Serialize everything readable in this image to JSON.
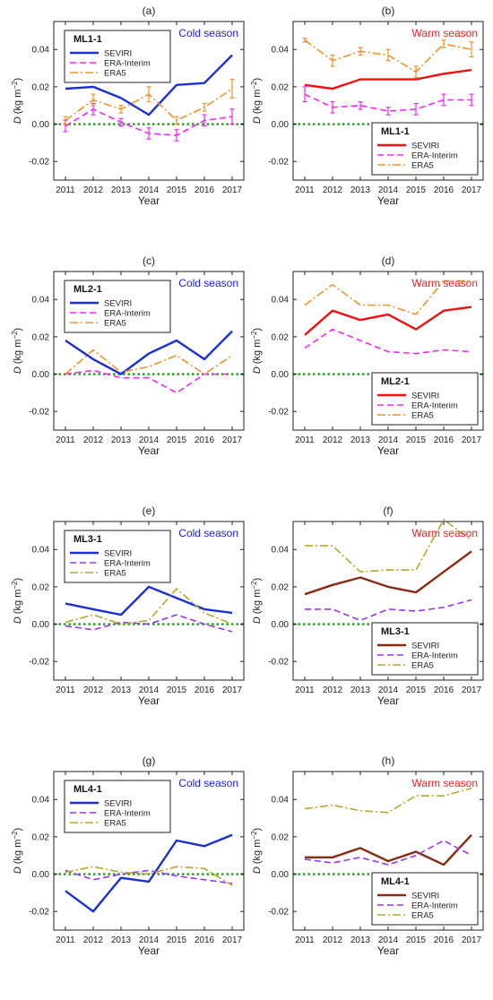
{
  "figure": {
    "xlabel": "Year",
    "ylabel_main": "D",
    "ylabel_unit": "(kg m",
    "ylabel_exp": "−2",
    "ylabel_close": ")"
  },
  "colors": {
    "cold_title": "#1a1aff",
    "warm_title": "#ff1a1a",
    "zero_line": "#1aa01a",
    "seviri_blue": "#1a2fd6",
    "seviri_red": "#ee1111",
    "seviri_brown": "#8b2a12",
    "erai_magenta": "#ff22ff",
    "erai_purple": "#9933ff",
    "era5_orange": "#f0932a",
    "era5_olive": "#b5a82a"
  },
  "chart_data": [
    {
      "panel": "(a)",
      "region": "ML1-1",
      "season": "Cold season",
      "type": "line",
      "legend_position": "top-left",
      "grid": false,
      "x": [
        2011,
        2012,
        2013,
        2014,
        2015,
        2016,
        2017
      ],
      "ylim": [
        -0.03,
        0.055
      ],
      "yticks": [
        "0.04",
        "0.02",
        "0.00",
        "-0.02"
      ],
      "ytick_values": [
        0.04,
        0.02,
        0.0,
        -0.02
      ],
      "series": [
        {
          "name": "SEVIRI",
          "values": [
            0.019,
            0.02,
            0.014,
            0.005,
            0.021,
            0.022,
            0.037
          ],
          "color": "#1a2fd6",
          "dash": "solid"
        },
        {
          "name": "ERA-Interim",
          "values": [
            -0.001,
            0.008,
            0.001,
            -0.005,
            -0.006,
            0.002,
            0.004
          ],
          "color": "#ff22ff",
          "dash": "dashed",
          "error": [
            0.003,
            0.003,
            0.002,
            0.003,
            0.003,
            0.003,
            0.004
          ]
        },
        {
          "name": "ERA5",
          "values": [
            0.002,
            0.013,
            0.008,
            0.016,
            0.002,
            0.009,
            0.019
          ],
          "color": "#f0932a",
          "dash": "dashdot",
          "error": [
            0.002,
            0.003,
            0.002,
            0.004,
            0.002,
            0.002,
            0.005
          ]
        }
      ]
    },
    {
      "panel": "(b)",
      "region": "ML1-1",
      "season": "Warm season",
      "type": "line",
      "legend_position": "bottom-right",
      "grid": false,
      "x": [
        2011,
        2012,
        2013,
        2014,
        2015,
        2016,
        2017
      ],
      "ylim": [
        -0.03,
        0.055
      ],
      "yticks": [
        "0.04",
        "0.02",
        "0.00",
        "-0.02"
      ],
      "ytick_values": [
        0.04,
        0.02,
        0.0,
        -0.02
      ],
      "series": [
        {
          "name": "SEVIRI",
          "values": [
            0.021,
            0.019,
            0.024,
            0.024,
            0.024,
            0.027,
            0.029
          ],
          "color": "#ee1111",
          "dash": "solid"
        },
        {
          "name": "ERA-Interim",
          "values": [
            0.016,
            0.009,
            0.01,
            0.007,
            0.008,
            0.013,
            0.013
          ],
          "color": "#ff22ff",
          "dash": "dashed",
          "error": [
            0.004,
            0.003,
            0.002,
            0.002,
            0.003,
            0.003,
            0.003
          ]
        },
        {
          "name": "ERA5",
          "values": [
            0.045,
            0.034,
            0.039,
            0.037,
            0.028,
            0.043,
            0.04
          ],
          "color": "#f0932a",
          "dash": "dashdot",
          "error": [
            0.001,
            0.003,
            0.002,
            0.003,
            0.003,
            0.002,
            0.004
          ]
        }
      ]
    },
    {
      "panel": "(c)",
      "region": "ML2-1",
      "season": "Cold season",
      "type": "line",
      "legend_position": "top-left",
      "grid": false,
      "x": [
        2011,
        2012,
        2013,
        2014,
        2015,
        2016,
        2017
      ],
      "ylim": [
        -0.03,
        0.055
      ],
      "yticks": [
        "0.04",
        "0.02",
        "0.00",
        "-0.02"
      ],
      "ytick_values": [
        0.04,
        0.02,
        0.0,
        -0.02
      ],
      "series": [
        {
          "name": "SEVIRI",
          "values": [
            0.018,
            0.008,
            0.0,
            0.011,
            0.018,
            0.008,
            0.023
          ],
          "color": "#1a2fd6",
          "dash": "solid"
        },
        {
          "name": "ERA-Interim",
          "values": [
            0.0,
            0.002,
            -0.002,
            -0.002,
            -0.01,
            0.0,
            0.0
          ],
          "color": "#ff22ff",
          "dash": "dashed"
        },
        {
          "name": "ERA5",
          "values": [
            0.0,
            0.013,
            0.001,
            0.004,
            0.01,
            0.0,
            0.01
          ],
          "color": "#f0932a",
          "dash": "dashdot"
        }
      ]
    },
    {
      "panel": "(d)",
      "region": "ML2-1",
      "season": "Warm season",
      "type": "line",
      "legend_position": "bottom-right",
      "grid": false,
      "x": [
        2011,
        2012,
        2013,
        2014,
        2015,
        2016,
        2017
      ],
      "ylim": [
        -0.03,
        0.055
      ],
      "yticks": [
        "0.04",
        "0.02",
        "0.00",
        "-0.02"
      ],
      "ytick_values": [
        0.04,
        0.02,
        0.0,
        -0.02
      ],
      "series": [
        {
          "name": "SEVIRI",
          "values": [
            0.021,
            0.034,
            0.029,
            0.032,
            0.024,
            0.034,
            0.036
          ],
          "color": "#ee1111",
          "dash": "solid"
        },
        {
          "name": "ERA-Interim",
          "values": [
            0.014,
            0.024,
            0.018,
            0.012,
            0.011,
            0.013,
            0.012
          ],
          "color": "#ff22ff",
          "dash": "dashed"
        },
        {
          "name": "ERA5",
          "values": [
            0.037,
            0.048,
            0.037,
            0.037,
            0.032,
            0.05,
            0.05
          ],
          "color": "#f0932a",
          "dash": "dashdot"
        }
      ]
    },
    {
      "panel": "(e)",
      "region": "ML3-1",
      "season": "Cold season",
      "type": "line",
      "legend_position": "top-left",
      "grid": false,
      "x": [
        2011,
        2012,
        2013,
        2014,
        2015,
        2016,
        2017
      ],
      "ylim": [
        -0.03,
        0.055
      ],
      "yticks": [
        "0.04",
        "0.02",
        "0.00",
        "-0.02"
      ],
      "ytick_values": [
        0.04,
        0.02,
        0.0,
        -0.02
      ],
      "series": [
        {
          "name": "SEVIRI",
          "values": [
            0.011,
            0.008,
            0.005,
            0.02,
            0.014,
            0.008,
            0.006
          ],
          "color": "#1a2fd6",
          "dash": "solid"
        },
        {
          "name": "ERA-Interim",
          "values": [
            -0.001,
            -0.003,
            0.001,
            0.0,
            0.005,
            0.0,
            -0.004
          ],
          "color": "#9933ff",
          "dash": "dashed"
        },
        {
          "name": "ERA5",
          "values": [
            0.001,
            0.005,
            0.0,
            0.002,
            0.019,
            0.006,
            0.0
          ],
          "color": "#b5a82a",
          "dash": "dashdot"
        }
      ]
    },
    {
      "panel": "(f)",
      "region": "ML3-1",
      "season": "Warm season",
      "type": "line",
      "legend_position": "bottom-right",
      "grid": false,
      "x": [
        2011,
        2012,
        2013,
        2014,
        2015,
        2016,
        2017
      ],
      "ylim": [
        -0.03,
        0.055
      ],
      "yticks": [
        "0.04",
        "0.02",
        "0.00",
        "-0.02"
      ],
      "ytick_values": [
        0.04,
        0.02,
        0.0,
        -0.02
      ],
      "series": [
        {
          "name": "SEVIRI",
          "values": [
            0.016,
            0.021,
            0.025,
            0.02,
            0.017,
            0.028,
            0.039
          ],
          "color": "#8b2a12",
          "dash": "solid"
        },
        {
          "name": "ERA-Interim",
          "values": [
            0.008,
            0.008,
            0.002,
            0.008,
            0.007,
            0.009,
            0.013
          ],
          "color": "#9933ff",
          "dash": "dashed"
        },
        {
          "name": "ERA5",
          "values": [
            0.042,
            0.042,
            0.028,
            0.029,
            0.029,
            0.056,
            0.045
          ],
          "color": "#b5a82a",
          "dash": "dashdot"
        }
      ]
    },
    {
      "panel": "(g)",
      "region": "ML4-1",
      "season": "Cold season",
      "type": "line",
      "legend_position": "top-left",
      "grid": false,
      "x": [
        2011,
        2012,
        2013,
        2014,
        2015,
        2016,
        2017
      ],
      "ylim": [
        -0.03,
        0.055
      ],
      "yticks": [
        "0.04",
        "0.02",
        "0.00",
        "-0.02"
      ],
      "ytick_values": [
        0.04,
        0.02,
        0.0,
        -0.02
      ],
      "series": [
        {
          "name": "SEVIRI",
          "values": [
            -0.009,
            -0.02,
            -0.002,
            -0.004,
            0.018,
            0.015,
            0.021
          ],
          "color": "#1a2fd6",
          "dash": "solid"
        },
        {
          "name": "ERA-Interim",
          "values": [
            0.002,
            -0.003,
            0.0,
            0.002,
            -0.001,
            -0.003,
            -0.005
          ],
          "color": "#9933ff",
          "dash": "dashed"
        },
        {
          "name": "ERA5",
          "values": [
            0.001,
            0.004,
            0.001,
            0.0,
            0.004,
            0.003,
            -0.006
          ],
          "color": "#b5a82a",
          "dash": "dashdot"
        }
      ]
    },
    {
      "panel": "(h)",
      "region": "ML4-1",
      "season": "Warm season",
      "type": "line",
      "legend_position": "bottom-right",
      "grid": false,
      "x": [
        2011,
        2012,
        2013,
        2014,
        2015,
        2016,
        2017
      ],
      "ylim": [
        -0.03,
        0.055
      ],
      "yticks": [
        "0.04",
        "0.02",
        "0.00",
        "-0.02"
      ],
      "ytick_values": [
        0.04,
        0.02,
        0.0,
        -0.02
      ],
      "series": [
        {
          "name": "SEVIRI",
          "values": [
            0.009,
            0.009,
            0.014,
            0.007,
            0.012,
            0.005,
            0.021
          ],
          "color": "#8b2a12",
          "dash": "solid"
        },
        {
          "name": "ERA-Interim",
          "values": [
            0.008,
            0.006,
            0.009,
            0.005,
            0.01,
            0.018,
            0.01
          ],
          "color": "#9933ff",
          "dash": "dashed"
        },
        {
          "name": "ERA5",
          "values": [
            0.035,
            0.037,
            0.034,
            0.033,
            0.042,
            0.042,
            0.046
          ],
          "color": "#b5a82a",
          "dash": "dashdot"
        }
      ]
    }
  ]
}
